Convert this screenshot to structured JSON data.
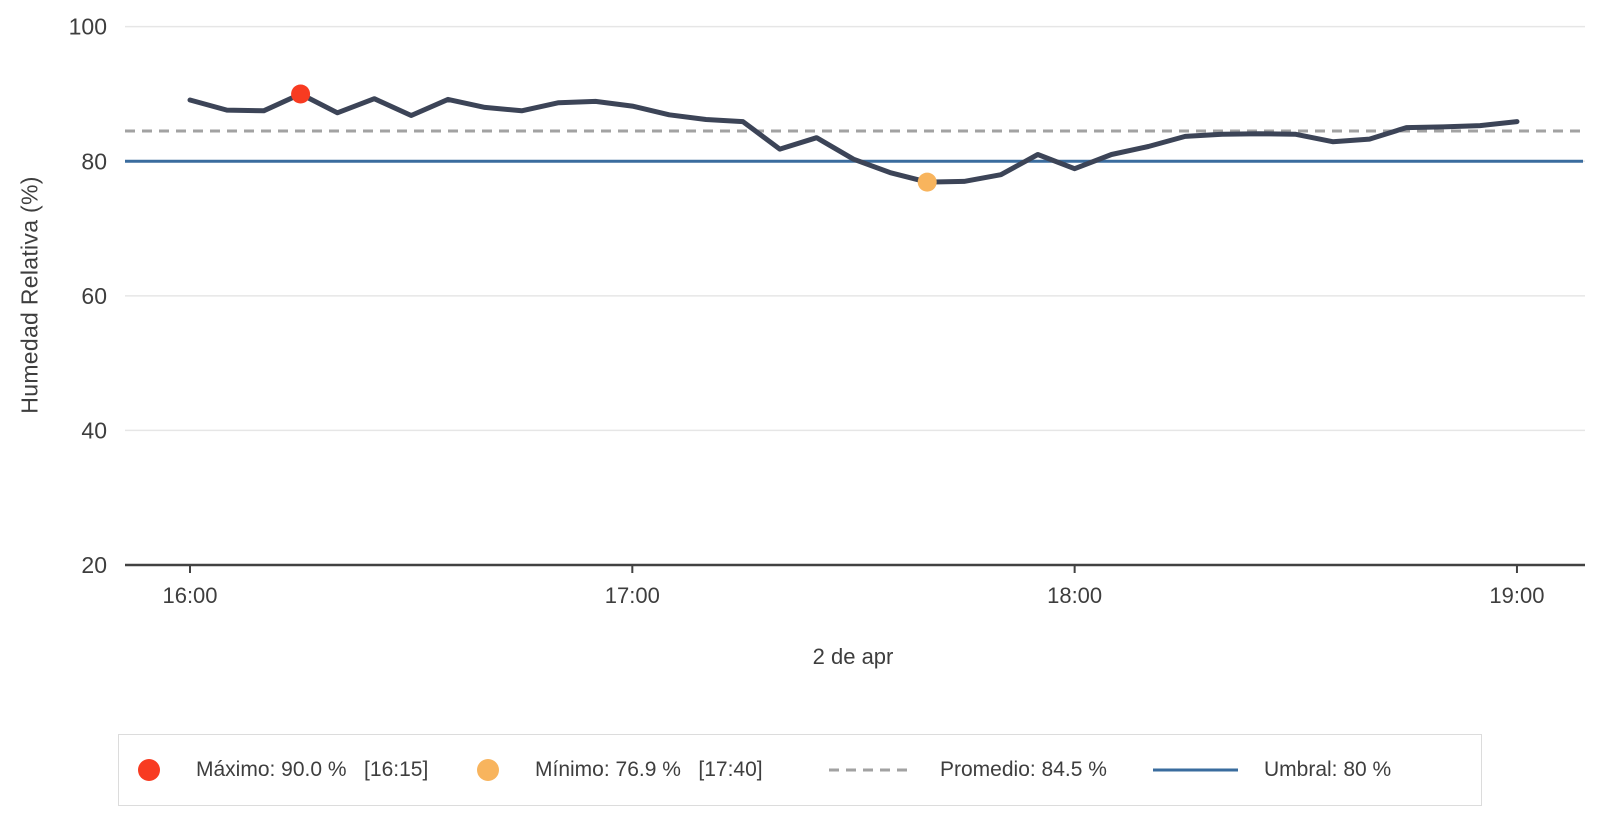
{
  "chart_data": {
    "type": "line",
    "title": "",
    "xlabel": "2 de apr",
    "ylabel": "Humedad Relativa (%)",
    "x_interval_minutes": 5,
    "x": [
      "16:00",
      "16:05",
      "16:10",
      "16:15",
      "16:20",
      "16:25",
      "16:30",
      "16:35",
      "16:40",
      "16:45",
      "16:50",
      "16:55",
      "17:00",
      "17:05",
      "17:10",
      "17:15",
      "17:20",
      "17:25",
      "17:30",
      "17:35",
      "17:40",
      "17:45",
      "17:50",
      "17:55",
      "18:00",
      "18:05",
      "18:10",
      "18:15",
      "18:20",
      "18:25",
      "18:30",
      "18:35",
      "18:40",
      "18:45",
      "18:50",
      "18:55",
      "19:00"
    ],
    "series": [
      {
        "name": "Humedad Relativa (%)",
        "values": [
          89.1,
          87.6,
          87.5,
          90.0,
          87.2,
          89.3,
          86.8,
          89.2,
          88.0,
          87.5,
          88.7,
          88.9,
          88.2,
          86.9,
          86.2,
          85.9,
          81.8,
          83.5,
          80.3,
          78.3,
          76.9,
          77.0,
          78.0,
          81.0,
          78.9,
          81.0,
          82.2,
          83.7,
          84.0,
          84.1,
          84.0,
          82.9,
          83.3,
          85.0,
          85.1,
          85.3,
          85.9
        ]
      }
    ],
    "yticks": [
      20,
      40,
      60,
      80,
      100
    ],
    "xticks": [
      "16:00",
      "17:00",
      "18:00",
      "19:00"
    ],
    "ylim": [
      20,
      100
    ],
    "grid": true,
    "legend_position": "bottom",
    "annotations": {
      "max": {
        "value": "90.0",
        "time": "16:15"
      },
      "min": {
        "value": "76.9",
        "time": "17:40"
      },
      "promedio": "84.5",
      "umbral": "80"
    }
  },
  "legend": {
    "items": [
      {
        "label": "Máximo: 90.0 %   [16:15]",
        "swatch": "dot",
        "color_key": "max"
      },
      {
        "label": "Mínimo: 76.9 %   [17:40]",
        "swatch": "dot",
        "color_key": "min"
      },
      {
        "label": "Promedio: 84.5 %",
        "swatch": "dash",
        "color_key": "promedio"
      },
      {
        "label": "Umbral: 80 %",
        "swatch": "line",
        "color_key": "umbral"
      }
    ]
  },
  "colors": {
    "series": "#3c4457",
    "max": "#f83b21",
    "min": "#f8b45d",
    "promedio": "#a2a2a2",
    "umbral": "#3a6c9e",
    "grid": "#e6e6e6",
    "axis": "#424242",
    "text": "#3e3e3e"
  }
}
